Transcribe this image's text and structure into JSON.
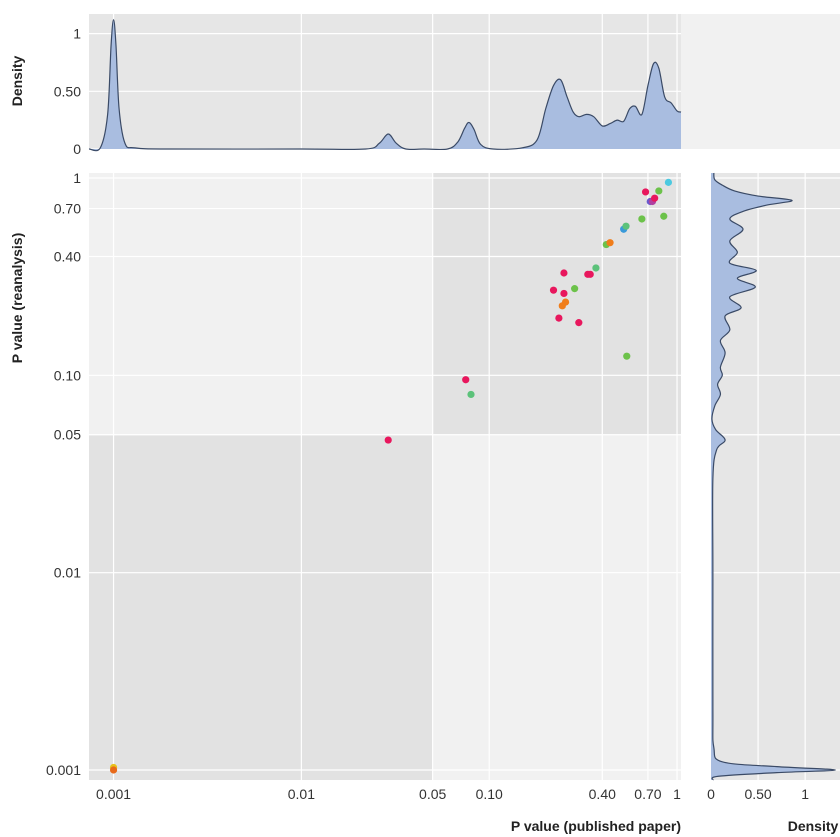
{
  "chart_data": [
    {
      "id": "scatter",
      "type": "scatter",
      "xlabel": "P value (published paper)",
      "ylabel": "P value (reanalysis)",
      "x_scale": "log",
      "y_scale": "log",
      "xlim": [
        0.00074,
        1.05
      ],
      "ylim": [
        0.00089,
        1.06
      ],
      "x_ticks": [
        {
          "value": 0.001,
          "label": "0.001"
        },
        {
          "value": 0.01,
          "label": "0.01"
        },
        {
          "value": 0.05,
          "label": "0.05"
        },
        {
          "value": 0.1,
          "label": "0.10"
        },
        {
          "value": 0.4,
          "label": "0.40"
        },
        {
          "value": 0.7,
          "label": "0.70"
        },
        {
          "value": 1,
          "label": "1"
        }
      ],
      "y_ticks": [
        {
          "value": 0.001,
          "label": "0.001"
        },
        {
          "value": 0.01,
          "label": "0.01"
        },
        {
          "value": 0.05,
          "label": "0.05"
        },
        {
          "value": 0.1,
          "label": "0.10"
        },
        {
          "value": 0.4,
          "label": "0.40"
        },
        {
          "value": 0.7,
          "label": "0.70"
        },
        {
          "value": 1,
          "label": "1"
        }
      ],
      "shaded_regions": [
        {
          "x": [
            0.00074,
            0.05
          ],
          "y": [
            0.00089,
            0.05
          ]
        },
        {
          "x": [
            0.05,
            1.05
          ],
          "y": [
            0.05,
            1.06
          ]
        }
      ],
      "grid": true,
      "points": [
        {
          "x": 0.001,
          "y": 0.00103,
          "color": "#e8c21a"
        },
        {
          "x": 0.001,
          "y": 0.001,
          "color": "#e86a1a"
        },
        {
          "x": 0.029,
          "y": 0.047,
          "color": "#e8175d"
        },
        {
          "x": 0.075,
          "y": 0.095,
          "color": "#e8175d"
        },
        {
          "x": 0.08,
          "y": 0.08,
          "color": "#5cc27a"
        },
        {
          "x": 0.22,
          "y": 0.27,
          "color": "#e8175d"
        },
        {
          "x": 0.25,
          "y": 0.33,
          "color": "#e8175d"
        },
        {
          "x": 0.25,
          "y": 0.26,
          "color": "#e8175d"
        },
        {
          "x": 0.245,
          "y": 0.225,
          "color": "#f07d1a"
        },
        {
          "x": 0.255,
          "y": 0.235,
          "color": "#f07d1a"
        },
        {
          "x": 0.235,
          "y": 0.195,
          "color": "#e8175d"
        },
        {
          "x": 0.285,
          "y": 0.275,
          "color": "#6cc24a"
        },
        {
          "x": 0.3,
          "y": 0.185,
          "color": "#e8175d"
        },
        {
          "x": 0.335,
          "y": 0.325,
          "color": "#e8175d"
        },
        {
          "x": 0.345,
          "y": 0.325,
          "color": "#e8175d"
        },
        {
          "x": 0.37,
          "y": 0.35,
          "color": "#5cc27a"
        },
        {
          "x": 0.42,
          "y": 0.46,
          "color": "#6cc24a"
        },
        {
          "x": 0.44,
          "y": 0.47,
          "color": "#f07d1a"
        },
        {
          "x": 0.52,
          "y": 0.55,
          "color": "#3a9ad9"
        },
        {
          "x": 0.535,
          "y": 0.57,
          "color": "#5cc27a"
        },
        {
          "x": 0.54,
          "y": 0.125,
          "color": "#6cc24a"
        },
        {
          "x": 0.65,
          "y": 0.62,
          "color": "#6cc24a"
        },
        {
          "x": 0.68,
          "y": 0.85,
          "color": "#e8175d"
        },
        {
          "x": 0.72,
          "y": 0.76,
          "color": "#6a5acd"
        },
        {
          "x": 0.74,
          "y": 0.76,
          "color": "#b040a0"
        },
        {
          "x": 0.76,
          "y": 0.79,
          "color": "#e8175d"
        },
        {
          "x": 0.8,
          "y": 0.86,
          "color": "#6cc24a"
        },
        {
          "x": 0.85,
          "y": 0.64,
          "color": "#6cc24a"
        },
        {
          "x": 0.9,
          "y": 0.95,
          "color": "#4cc9e0"
        }
      ]
    },
    {
      "id": "top-density",
      "type": "area",
      "xlabel": "",
      "ylabel": "Density",
      "x_scale": "log",
      "xlim": [
        0.00074,
        1.05
      ],
      "ylim": [
        0,
        1.17
      ],
      "y_ticks": [
        {
          "value": 0,
          "label": "0"
        },
        {
          "value": 0.5,
          "label": "0.50"
        },
        {
          "value": 1,
          "label": "1"
        }
      ],
      "grid": true,
      "fill_color": "#a9bde0",
      "line_color": "#3a4a66",
      "x": [
        0.00074,
        0.00085,
        0.00093,
        0.00097,
        0.001,
        0.00103,
        0.00107,
        0.00115,
        0.0013,
        0.002,
        0.01,
        0.022,
        0.026,
        0.029,
        0.032,
        0.036,
        0.045,
        0.06,
        0.068,
        0.074,
        0.078,
        0.083,
        0.09,
        0.105,
        0.15,
        0.18,
        0.2,
        0.22,
        0.24,
        0.26,
        0.28,
        0.3,
        0.33,
        0.36,
        0.4,
        0.44,
        0.48,
        0.52,
        0.56,
        0.6,
        0.65,
        0.7,
        0.75,
        0.8,
        0.86,
        0.93,
        1.0,
        1.05
      ],
      "y": [
        0,
        0.01,
        0.3,
        0.9,
        1.12,
        0.9,
        0.35,
        0.05,
        0.01,
        0,
        0,
        0,
        0.05,
        0.13,
        0.05,
        0,
        0,
        0,
        0.06,
        0.18,
        0.23,
        0.17,
        0.04,
        0,
        0.01,
        0.08,
        0.35,
        0.55,
        0.6,
        0.45,
        0.32,
        0.28,
        0.3,
        0.28,
        0.2,
        0.22,
        0.25,
        0.24,
        0.35,
        0.37,
        0.3,
        0.55,
        0.74,
        0.7,
        0.45,
        0.4,
        0.33,
        0.32
      ]
    },
    {
      "id": "right-density",
      "type": "area",
      "xlabel": "Density",
      "ylabel": "",
      "y_scale": "log",
      "ylim": [
        0.00089,
        1.06
      ],
      "xlim": [
        0,
        1.37
      ],
      "x_ticks": [
        {
          "value": 0,
          "label": "0"
        },
        {
          "value": 0.5,
          "label": "0.50"
        },
        {
          "value": 1,
          "label": "1"
        }
      ],
      "grid": true,
      "fill_color": "#a9bde0",
      "line_color": "#3a4a66",
      "y": [
        0.00089,
        0.00093,
        0.00097,
        0.001,
        0.00104,
        0.0011,
        0.0013,
        0.002,
        0.01,
        0.03,
        0.042,
        0.047,
        0.053,
        0.06,
        0.07,
        0.08,
        0.09,
        0.1,
        0.11,
        0.13,
        0.15,
        0.17,
        0.2,
        0.22,
        0.25,
        0.28,
        0.31,
        0.34,
        0.37,
        0.42,
        0.48,
        0.55,
        0.62,
        0.68,
        0.73,
        0.77,
        0.81,
        0.86,
        0.92,
        0.98,
        1.06
      ],
      "x": [
        0.02,
        0.08,
        0.7,
        1.32,
        0.7,
        0.12,
        0.03,
        0.02,
        0.02,
        0.02,
        0.06,
        0.15,
        0.05,
        0.01,
        0.04,
        0.1,
        0.07,
        0.12,
        0.1,
        0.15,
        0.1,
        0.2,
        0.15,
        0.32,
        0.2,
        0.47,
        0.28,
        0.48,
        0.2,
        0.28,
        0.2,
        0.34,
        0.2,
        0.35,
        0.6,
        0.86,
        0.5,
        0.25,
        0.12,
        0.04,
        0.03
      ]
    }
  ]
}
